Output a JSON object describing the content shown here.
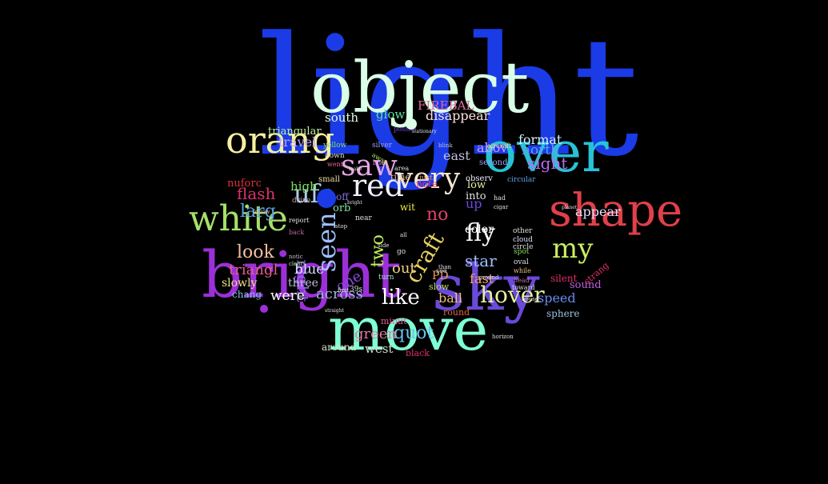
{
  "background": "#000000",
  "words": [
    {
      "text": "light",
      "color": "#1a3be6"
    },
    {
      "text": "object",
      "color": "#d9ffe6"
    },
    {
      "text": "move",
      "color": "#7fffd4"
    },
    {
      "text": "sky",
      "color": "#6a4ad8"
    },
    {
      "text": "bright",
      "color": "#9b30d9"
    },
    {
      "text": "over",
      "color": "#27c2d6"
    },
    {
      "text": "shape",
      "color": "#e0404a"
    },
    {
      "text": "orang",
      "color": "#f5f0a0"
    },
    {
      "text": "white",
      "color": "#a6e06a"
    },
    {
      "text": "saw",
      "color": "#e6a6e6"
    },
    {
      "text": "very",
      "color": "#f7e6d0"
    },
    {
      "text": "red",
      "color": "#f0f0ff"
    },
    {
      "text": "ufo",
      "color": "#b0d0f0"
    },
    {
      "text": "seen",
      "color": "#a0c0ff"
    },
    {
      "text": "my",
      "color": "#c8f060"
    },
    {
      "text": "hover",
      "color": "#e6f0a0"
    },
    {
      "text": "like",
      "color": "#ffffff"
    },
    {
      "text": "fly",
      "color": "#ffffff"
    },
    {
      "text": "craft",
      "color": "#e6d060"
    },
    {
      "text": "two",
      "color": "#c0f060"
    },
    {
      "text": "night",
      "color": "#8a6ae0"
    },
    {
      "text": "look",
      "color": "#f5c0a0"
    },
    {
      "text": "larg",
      "color": "#5aa0e0"
    },
    {
      "text": "flash",
      "color": "#e0306a"
    },
    {
      "text": "triangl",
      "color": "#e0608a"
    },
    {
      "text": "blue",
      "color": "#d0e0ff"
    },
    {
      "text": "quot",
      "color": "#6ac0f0"
    },
    {
      "text": "green",
      "color": "#e07aa0"
    },
    {
      "text": "star",
      "color": "#a0c0ff"
    },
    {
      "text": "across",
      "color": "#a0b0e0"
    },
    {
      "text": "out",
      "color": "#f0d080"
    },
    {
      "text": "no",
      "color": "#e0406a"
    },
    {
      "text": "one",
      "color": "#8a4ae0"
    },
    {
      "text": "were",
      "color": "#ffffff"
    },
    {
      "text": "ball",
      "color": "#f0c080"
    },
    {
      "text": "speed",
      "color": "#6a8af0"
    },
    {
      "text": "sight",
      "color": "#c06af0"
    },
    {
      "text": "north",
      "color": "#60a0f0"
    },
    {
      "text": "format",
      "color": "#d0f0ff"
    },
    {
      "text": "appear",
      "color": "#e0e0ff"
    },
    {
      "text": "disappear",
      "color": "#ffe0e0"
    },
    {
      "text": "FIREBAL",
      "color": "#e06aa0"
    },
    {
      "text": "glow",
      "color": "#60e0a0"
    },
    {
      "text": "south",
      "color": "#e0ffe0"
    },
    {
      "text": "travel",
      "color": "#c0a0ff"
    },
    {
      "text": "triangular",
      "color": "#c0f0a0"
    },
    {
      "text": "east",
      "color": "#c0c0e0"
    },
    {
      "text": "abov",
      "color": "#d0a0ff"
    },
    {
      "text": "color",
      "color": "#ffffff"
    },
    {
      "text": "fast",
      "color": "#f0a060"
    },
    {
      "text": "slowly",
      "color": "#f0e080"
    },
    {
      "text": "three",
      "color": "#c0c0e0"
    },
    {
      "text": "chang",
      "color": "#80c0e0"
    },
    {
      "text": "nuforc",
      "color": "#e0303a"
    },
    {
      "text": "high",
      "color": "#80e060"
    },
    {
      "text": "up",
      "color": "#6a4ae0"
    },
    {
      "text": "low",
      "color": "#e0f0a0"
    },
    {
      "text": "into",
      "color": "#e0e0e0"
    },
    {
      "text": "west",
      "color": "#d0e0d0"
    },
    {
      "text": "around",
      "color": "#e0e0c0"
    },
    {
      "text": "black",
      "color": "#e0306a"
    },
    {
      "text": "sound",
      "color": "#c060e0"
    },
    {
      "text": "silent",
      "color": "#e0306a"
    },
    {
      "text": "sphere",
      "color": "#a0c0e0"
    },
    {
      "text": "round",
      "color": "#e06a40"
    },
    {
      "text": "minut",
      "color": "#e05a9a"
    },
    {
      "text": "strang",
      "color": "#e0306a"
    },
    {
      "text": "orb",
      "color": "#80e0a0"
    },
    {
      "text": "note",
      "color": "#e0307a"
    },
    {
      "text": "time",
      "color": "#f0c0a0"
    },
    {
      "text": "PD",
      "color": "#f0a060"
    },
    {
      "text": "slow",
      "color": "#c0e060"
    },
    {
      "text": "second",
      "color": "#a0a0ff"
    },
    {
      "text": "wit",
      "color": "#f0f040"
    },
    {
      "text": "off",
      "color": "#8a6ae0"
    },
    {
      "text": "observ",
      "color": "#f0f0ff"
    },
    {
      "text": "small",
      "color": "#f0e0a0"
    },
    {
      "text": "drive",
      "color": "#c0a0a0"
    },
    {
      "text": "report",
      "color": "#e0e0e0"
    },
    {
      "text": "back",
      "color": "#c06aa0"
    },
    {
      "text": "circular",
      "color": "#60a0e0"
    },
    {
      "text": "yellow",
      "color": "#80e060"
    },
    {
      "text": "silver",
      "color": "#a0a0ff"
    },
    {
      "text": "down",
      "color": "#e0e0e0"
    },
    {
      "text": "went",
      "color": "#e06a9a"
    },
    {
      "text": "away",
      "color": "#c0f060"
    },
    {
      "text": "line",
      "color": "#e0a0ff"
    },
    {
      "text": "area",
      "color": "#e0e0e0"
    },
    {
      "text": "just",
      "color": "#f0a060"
    },
    {
      "text": "blink",
      "color": "#c0c0e0"
    },
    {
      "text": "aircraft",
      "color": "#e0e0a0"
    },
    {
      "text": "other",
      "color": "#e0e0e0"
    },
    {
      "text": "cloud",
      "color": "#e0e0ff"
    },
    {
      "text": "circle",
      "color": "#e0e0e0"
    },
    {
      "text": "spot",
      "color": "#80e060"
    },
    {
      "text": "oval",
      "color": "#e0e0e0"
    },
    {
      "text": "while",
      "color": "#f0c080"
    },
    {
      "text": "head",
      "color": "#c06aa0"
    },
    {
      "text": "toward",
      "color": "#e0e0e0"
    },
    {
      "text": "house",
      "color": "#e0e0e0"
    },
    {
      "text": "horizon",
      "color": "#e0e0e0"
    },
    {
      "text": "notic",
      "color": "#c0c0c0"
    },
    {
      "text": "clear",
      "color": "#c0e0a0"
    },
    {
      "text": "follow",
      "color": "#e0c0a0"
    },
    {
      "text": "39s",
      "color": "#e0e0e0"
    },
    {
      "text": "turn",
      "color": "#a0e0c0"
    },
    {
      "text": "see",
      "color": "#e0e0e0"
    },
    {
      "text": "first",
      "color": "#e0e0e0"
    },
    {
      "text": "stop",
      "color": "#e0e0e0"
    },
    {
      "text": "near",
      "color": "#e0e0e0"
    },
    {
      "text": "had",
      "color": "#e0e0e0"
    },
    {
      "text": "cigar",
      "color": "#e0e0e0"
    },
    {
      "text": "ground",
      "color": "#e0e0e0"
    },
    {
      "text": "stationary",
      "color": "#e0e0e0"
    },
    {
      "text": "possibl",
      "color": "#6a4ae0"
    },
    {
      "text": "bright",
      "color": "#e0e0e0"
    },
    {
      "text": "make",
      "color": "#e0e0e0"
    },
    {
      "text": "planet",
      "color": "#e0e0e0"
    },
    {
      "text": "than",
      "color": "#e0e0e0"
    },
    {
      "text": "side",
      "color": "#e0e0e0"
    },
    {
      "text": "go",
      "color": "#e0e0e0"
    },
    {
      "text": "all",
      "color": "#e0e0e0"
    },
    {
      "text": "straight",
      "color": "#e0e0e0"
    }
  ]
}
